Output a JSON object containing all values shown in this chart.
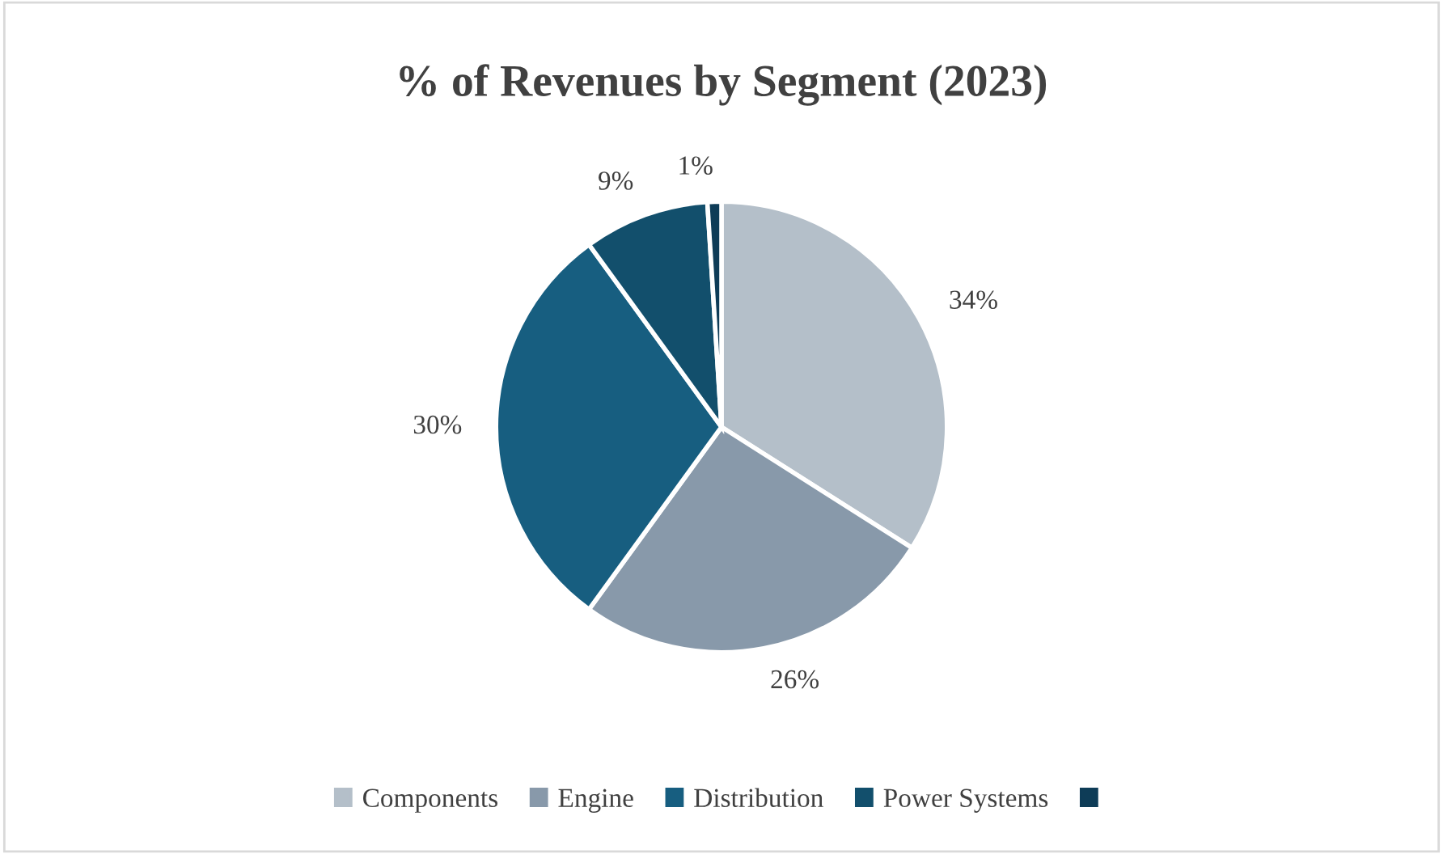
{
  "chart_data": {
    "type": "pie",
    "title": "% of Revenues by Segment (2023)",
    "categories": [
      "Components",
      "Engine",
      "Distribution",
      "Power Systems",
      null
    ],
    "values": [
      34,
      26,
      30,
      9,
      1
    ],
    "colors": [
      "#b4bfc9",
      "#8899aa",
      "#175e80",
      "#124f6c",
      "#0e3c57"
    ],
    "value_labels": [
      "34%",
      "26%",
      "30%",
      "9%",
      "1%"
    ],
    "legend": "bottom"
  }
}
